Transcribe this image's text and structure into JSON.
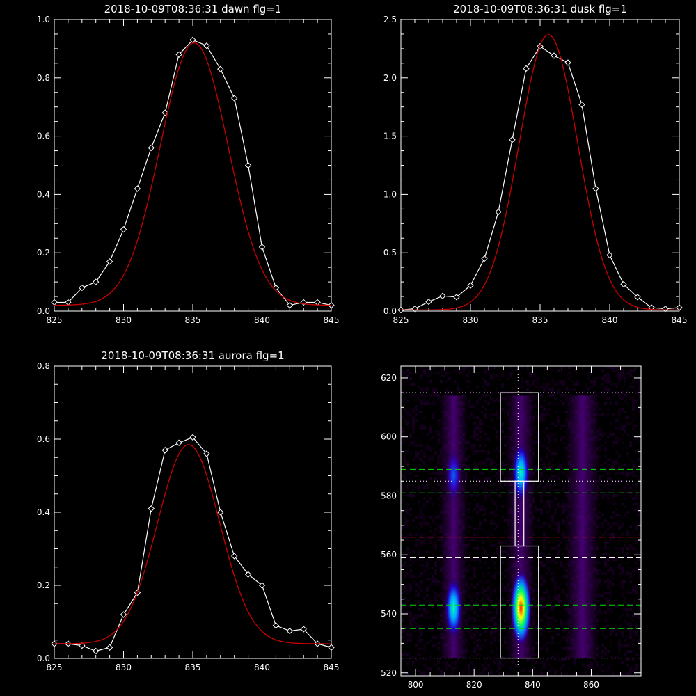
{
  "chart_data": [
    {
      "type": "line",
      "title": "2018-10-09T08:36:31 dawn flg=1",
      "xlim": [
        825,
        845
      ],
      "ylim": [
        0,
        1.0
      ],
      "x_ticks": [
        825,
        830,
        835,
        840,
        845
      ],
      "y_ticks": [
        0.0,
        0.2,
        0.4,
        0.6,
        0.8,
        1.0
      ],
      "x_tick_labels": [
        "825",
        "830",
        "835",
        "840",
        "845"
      ],
      "y_tick_labels": [
        "0.0",
        "0.2",
        "0.4",
        "0.6",
        "0.8",
        "1.0"
      ],
      "series": [
        {
          "color": "#ffffff",
          "markers": "diamond",
          "x": [
            825,
            826,
            827,
            828,
            829,
            830,
            831,
            832,
            833,
            834,
            835,
            836,
            837,
            838,
            839,
            840,
            841,
            842,
            843,
            844,
            845
          ],
          "y": [
            0.03,
            0.03,
            0.08,
            0.1,
            0.17,
            0.28,
            0.42,
            0.56,
            0.68,
            0.88,
            0.93,
            0.91,
            0.83,
            0.73,
            0.5,
            0.22,
            0.08,
            0.02,
            0.03,
            0.03,
            0.02
          ]
        },
        {
          "color": "#cc0000",
          "markers": "none",
          "fit": "gaussian",
          "center": 835.1,
          "peak": 0.92,
          "sigma": 2.45,
          "baseline": 0.02
        }
      ]
    },
    {
      "type": "line",
      "title": "2018-10-09T08:36:31 dusk flg=1",
      "xlim": [
        825,
        845
      ],
      "ylim": [
        0,
        2.5
      ],
      "x_ticks": [
        825,
        830,
        835,
        840,
        845
      ],
      "y_ticks": [
        0.0,
        0.5,
        1.0,
        1.5,
        2.0,
        2.5
      ],
      "x_tick_labels": [
        "825",
        "830",
        "835",
        "840",
        "845"
      ],
      "y_tick_labels": [
        "0.0",
        "0.5",
        "1.0",
        "1.5",
        "2.0",
        "2.5"
      ],
      "series": [
        {
          "color": "#ffffff",
          "markers": "diamond",
          "x": [
            825,
            826,
            827,
            828,
            829,
            830,
            831,
            832,
            833,
            834,
            835,
            836,
            837,
            838,
            839,
            840,
            841,
            842,
            843,
            844,
            845
          ],
          "y": [
            0.01,
            0.02,
            0.08,
            0.13,
            0.12,
            0.22,
            0.45,
            0.85,
            1.47,
            2.08,
            2.27,
            2.19,
            2.13,
            1.77,
            1.05,
            0.48,
            0.23,
            0.12,
            0.03,
            0.02,
            0.03
          ]
        },
        {
          "color": "#cc0000",
          "markers": "none",
          "fit": "gaussian",
          "center": 835.6,
          "peak": 2.37,
          "sigma": 2.1,
          "baseline": 0.01
        }
      ]
    },
    {
      "type": "line",
      "title": "2018-10-09T08:36:31 aurora flg=1",
      "xlim": [
        825,
        845
      ],
      "ylim": [
        0,
        0.8
      ],
      "x_ticks": [
        825,
        830,
        835,
        840,
        845
      ],
      "y_ticks": [
        0.0,
        0.2,
        0.4,
        0.6,
        0.8
      ],
      "x_tick_labels": [
        "825",
        "830",
        "835",
        "840",
        "845"
      ],
      "y_tick_labels": [
        "0.0",
        "0.2",
        "0.4",
        "0.6",
        "0.8"
      ],
      "series": [
        {
          "color": "#ffffff",
          "markers": "diamond",
          "x": [
            825,
            826,
            827,
            828,
            829,
            830,
            831,
            832,
            833,
            834,
            835,
            836,
            837,
            838,
            839,
            840,
            841,
            842,
            843,
            844,
            845
          ],
          "y": [
            0.04,
            0.04,
            0.035,
            0.02,
            0.03,
            0.12,
            0.18,
            0.41,
            0.57,
            0.59,
            0.605,
            0.56,
            0.4,
            0.28,
            0.23,
            0.2,
            0.09,
            0.075,
            0.08,
            0.04,
            0.03
          ]
        },
        {
          "color": "#cc0000",
          "markers": "none",
          "fit": "gaussian",
          "center": 834.7,
          "peak": 0.585,
          "sigma": 2.25,
          "baseline": 0.04
        }
      ]
    },
    {
      "type": "heatmap",
      "title": "",
      "xlim": [
        795,
        877
      ],
      "ylim": [
        519,
        624
      ],
      "x_ticks": [
        800,
        820,
        840,
        860
      ],
      "y_ticks": [
        520,
        540,
        560,
        580,
        600,
        620
      ],
      "x_tick_labels": [
        "800",
        "820",
        "840",
        "860"
      ],
      "y_tick_labels": [
        "520",
        "540",
        "560",
        "580",
        "600",
        "620"
      ],
      "emission_columns": [
        {
          "x": 813,
          "width": 2.5
        },
        {
          "x": 836,
          "width": 2.5
        },
        {
          "x": 857,
          "width": 3
        }
      ],
      "bright_spots": [
        {
          "x": 836,
          "y": 542,
          "intensity": 1.0
        },
        {
          "x": 813,
          "y": 542,
          "intensity": 0.55
        },
        {
          "x": 836,
          "y": 588,
          "intensity": 0.5
        },
        {
          "x": 813,
          "y": 587,
          "intensity": 0.35
        }
      ],
      "vertical_line_x": 835,
      "boxes": [
        {
          "x0": 829,
          "x1": 842,
          "y0": 525,
          "y1": 563
        },
        {
          "x0": 829,
          "x1": 842,
          "y0": 585,
          "y1": 615
        }
      ],
      "neck": {
        "x0": 834,
        "x1": 837,
        "y0": 563,
        "y1": 585
      },
      "dotted_lines_y": [
        525,
        563,
        585,
        615
      ],
      "green_dashed_y": [
        535,
        543,
        581,
        589
      ],
      "red_dashed_y": 566,
      "white_dashed_y": 559
    }
  ]
}
